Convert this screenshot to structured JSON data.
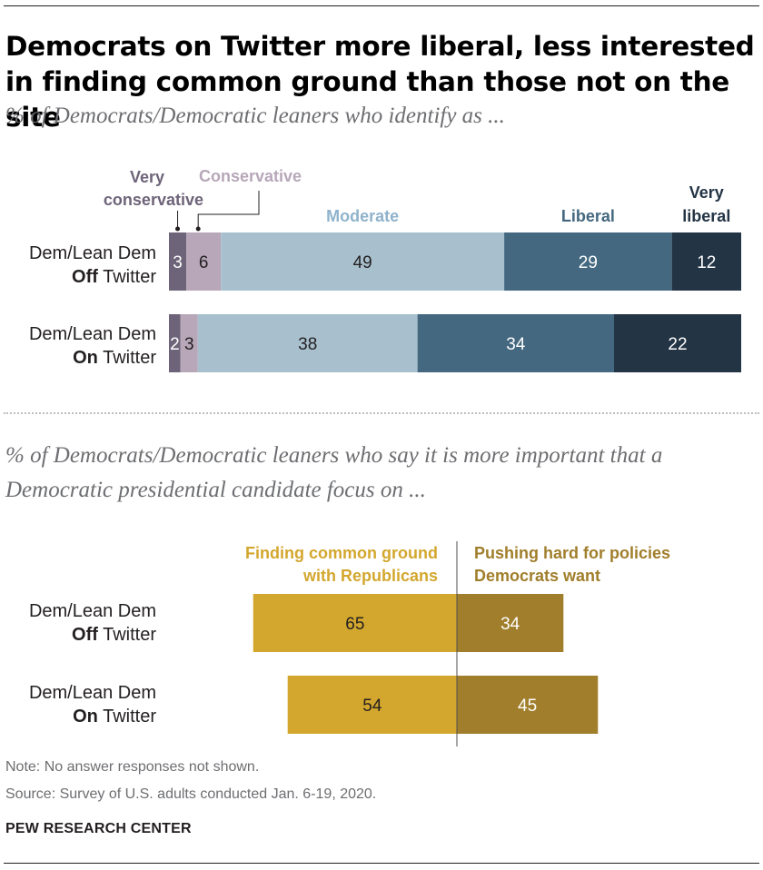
{
  "title": "Democrats on Twitter more liberal, less interested in finding common ground than those not on the site",
  "chart_data": [
    {
      "type": "bar",
      "orientation": "horizontal",
      "stacked": true,
      "subtitle": "% of Democrats/Democratic leaners who identify as ...",
      "categories": [
        {
          "line1": "Dem/Lean Dem",
          "bold": "Off",
          "rest": " Twitter"
        },
        {
          "line1": "Dem/Lean Dem",
          "bold": "On",
          "rest": " Twitter"
        }
      ],
      "series": [
        {
          "name": "Very conservative",
          "legend_line1": "Very",
          "legend_line2": "conservative",
          "color": "#6e6479",
          "text_color": "#ffffff",
          "values": [
            3,
            2
          ]
        },
        {
          "name": "Conservative",
          "legend_line1": "Conservative",
          "legend_line2": "",
          "color": "#b7a7b9",
          "text_color": "#231f20",
          "values": [
            6,
            3
          ]
        },
        {
          "name": "Moderate",
          "legend_line1": "Moderate",
          "legend_line2": "",
          "color": "#a8c0ce",
          "text_color": "#231f20",
          "values": [
            49,
            38
          ]
        },
        {
          "name": "Liberal",
          "legend_line1": "Liberal",
          "legend_line2": "",
          "color": "#44687f",
          "text_color": "#ffffff",
          "values": [
            29,
            34
          ]
        },
        {
          "name": "Very liberal",
          "legend_line1": "Very",
          "legend_line2": "liberal",
          "color": "#233445",
          "text_color": "#ffffff",
          "values": [
            12,
            22
          ]
        }
      ],
      "legend_colors": [
        "#6e6479",
        "#b7a7b9",
        "#8fb3cc",
        "#44687f",
        "#233445"
      ]
    },
    {
      "type": "bar",
      "orientation": "horizontal",
      "diverging": true,
      "subtitle": "% of Democrats/Democratic leaners who say it is more important that a Democratic presidential candidate focus on ...",
      "categories": [
        {
          "line1": "Dem/Lean Dem",
          "bold": "Off",
          "rest": " Twitter"
        },
        {
          "line1": "Dem/Lean Dem",
          "bold": "On",
          "rest": " Twitter"
        }
      ],
      "series": [
        {
          "name": "Finding common ground with Republicans",
          "legend_line1": "Finding common ground",
          "legend_line2": "with Republicans",
          "color": "#d3a72e",
          "values": [
            65,
            54
          ]
        },
        {
          "name": "Pushing hard for policies Democrats want",
          "legend_line1": "Pushing hard for policies",
          "legend_line2": "Democrats want",
          "color": "#a07e2b",
          "values": [
            34,
            45
          ]
        }
      ]
    }
  ],
  "note": "Note: No answer responses not shown.",
  "source": "Source: Survey of U.S. adults conducted Jan. 6-19, 2020.",
  "brand": "PEW RESEARCH CENTER"
}
